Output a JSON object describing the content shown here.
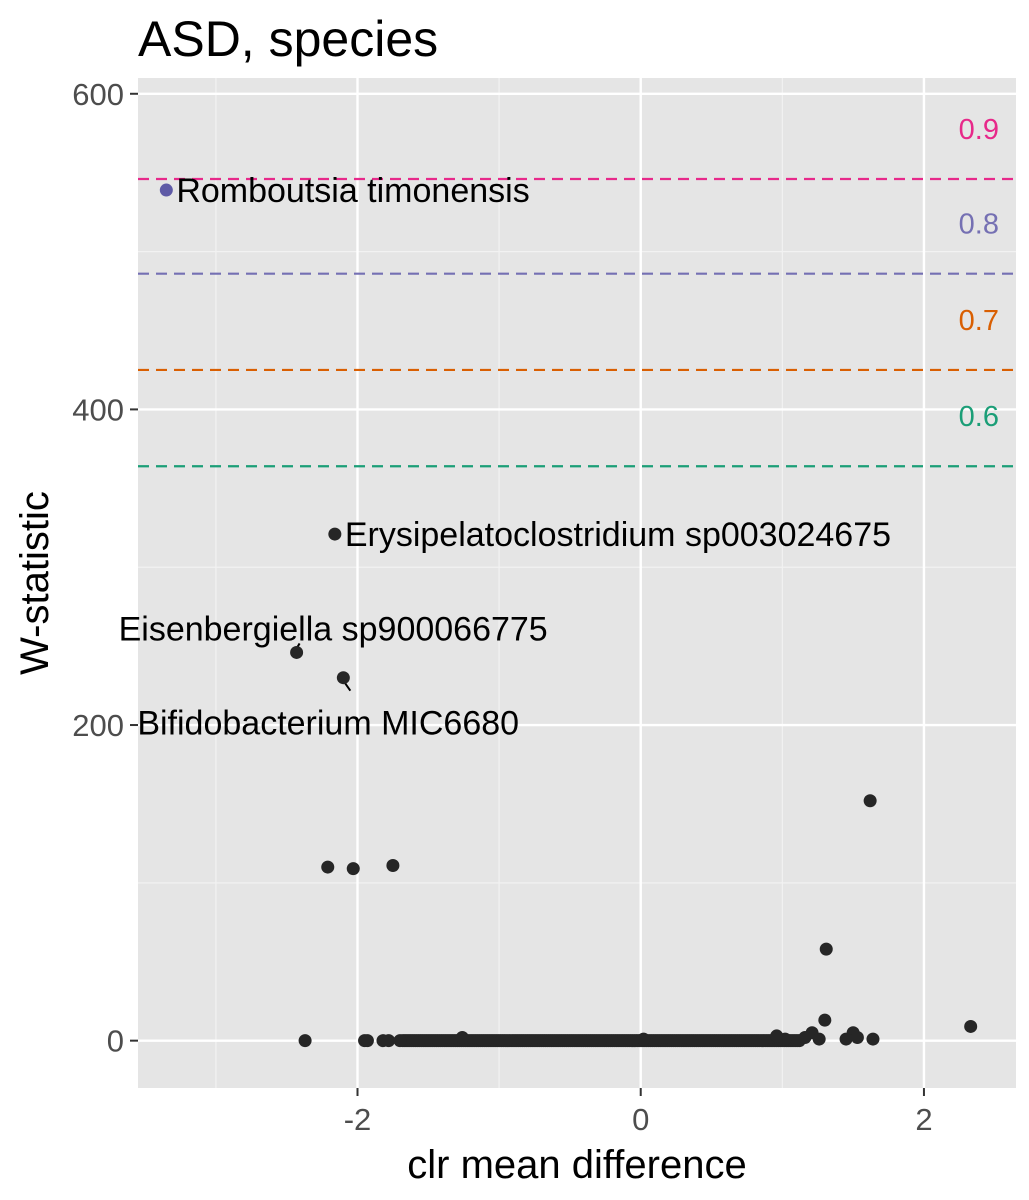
{
  "chart_data": {
    "type": "scatter",
    "title": "ASD, species",
    "xlabel": "clr mean difference",
    "ylabel": "W-statistic",
    "xlim": [
      -3.55,
      2.65
    ],
    "ylim": [
      -30,
      610
    ],
    "x_ticks": [
      -2,
      0,
      2
    ],
    "x_tick_labels": [
      "-2",
      "0",
      "2"
    ],
    "x_minor": [
      -3,
      -1,
      1
    ],
    "y_ticks": [
      0,
      200,
      400,
      600
    ],
    "y_tick_labels": [
      "0",
      "200",
      "400",
      "600"
    ],
    "y_minor": [
      100,
      300,
      500
    ],
    "grid": true,
    "point_color": "#262626",
    "thresholds": [
      {
        "label": "0.9",
        "value": 546,
        "color": "#e7298a"
      },
      {
        "label": "0.8",
        "value": 486,
        "color": "#7570b3"
      },
      {
        "label": "0.7",
        "value": 425,
        "color": "#d95f02"
      },
      {
        "label": "0.6",
        "value": 364,
        "color": "#1b9e77"
      }
    ],
    "highlighted_points": [
      {
        "name": "Romboutsia timonensis",
        "x": -3.35,
        "y": 539,
        "color": "#5e5aa6",
        "label_pos": "right"
      },
      {
        "name": "Erysipelatoclostridium sp003024675",
        "x": -2.16,
        "y": 321,
        "color": "#262626",
        "label_pos": "right"
      },
      {
        "name": "Eisenbergiella sp900066775",
        "x": -2.43,
        "y": 246,
        "color": "#262626",
        "label_pos": "above"
      },
      {
        "name": "Bifidobacterium MIC6680",
        "x": -2.1,
        "y": 230,
        "color": "#262626",
        "label_pos": "below"
      }
    ],
    "points": [
      {
        "x": 1.62,
        "y": 152
      },
      {
        "x": -2.21,
        "y": 110
      },
      {
        "x": -2.03,
        "y": 109
      },
      {
        "x": -1.75,
        "y": 111
      },
      {
        "x": 1.31,
        "y": 58
      },
      {
        "x": 1.3,
        "y": 13
      },
      {
        "x": 2.33,
        "y": 9
      },
      {
        "x": 1.21,
        "y": 5
      },
      {
        "x": 1.5,
        "y": 5
      },
      {
        "x": 1.53,
        "y": 2
      },
      {
        "x": 1.45,
        "y": 1
      },
      {
        "x": 1.64,
        "y": 1
      },
      {
        "x": 1.16,
        "y": 2
      },
      {
        "x": 1.26,
        "y": 1
      },
      {
        "x": -2.37,
        "y": 0
      },
      {
        "x": -1.95,
        "y": 0
      },
      {
        "x": -1.93,
        "y": 0
      },
      {
        "x": -1.82,
        "y": 0
      },
      {
        "x": -1.78,
        "y": 0
      },
      {
        "x": -1.7,
        "y": 0
      },
      {
        "x": -1.26,
        "y": 2
      },
      {
        "x": 0.02,
        "y": 1
      },
      {
        "x": 0.96,
        "y": 3
      },
      {
        "x": 1.02,
        "y": 1
      }
    ],
    "zero_band": {
      "x_from": -1.68,
      "x_to": 1.12,
      "count": 190,
      "y": 0
    }
  }
}
